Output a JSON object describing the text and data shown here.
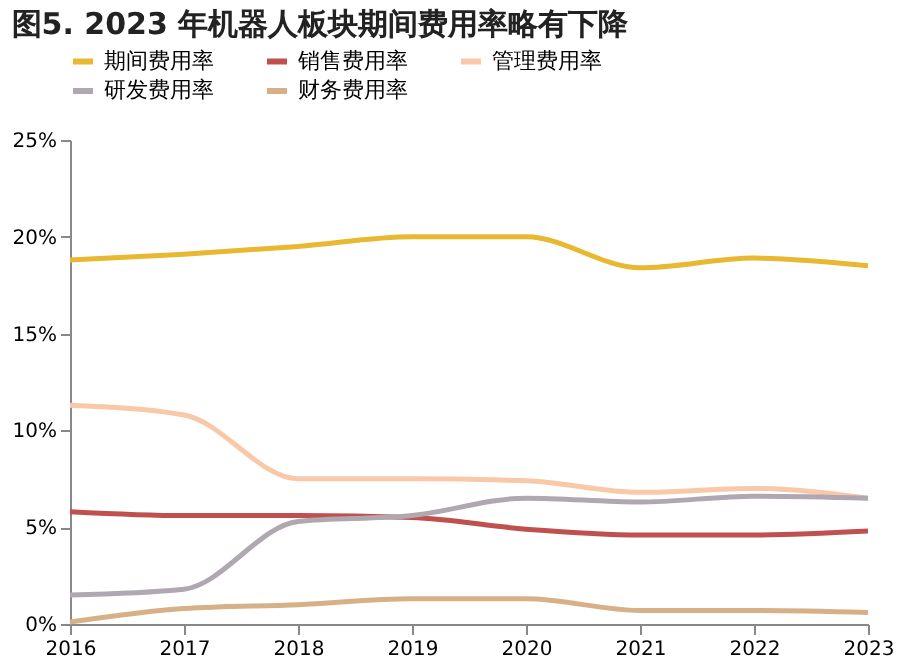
{
  "chart_data": {
    "type": "line",
    "title": "图5. 2023 年机器人板块期间费用率略有下降",
    "categories": [
      "2016",
      "2017",
      "2018",
      "2019",
      "2020",
      "2021",
      "2022",
      "2023"
    ],
    "series": [
      {
        "name": "期间费用率",
        "color": "#e8b830",
        "values": [
          18.8,
          19.1,
          19.5,
          20.0,
          20.0,
          18.4,
          18.9,
          18.5
        ]
      },
      {
        "name": "销售费用率",
        "color": "#c0504d",
        "values": [
          5.8,
          5.6,
          5.6,
          5.5,
          4.9,
          4.6,
          4.6,
          4.8
        ]
      },
      {
        "name": "管理费用率",
        "color": "#f8c8a8",
        "values": [
          11.3,
          10.8,
          7.5,
          7.5,
          7.4,
          6.8,
          7.0,
          6.5
        ]
      },
      {
        "name": "研发费用率",
        "color": "#b0a8b0",
        "values": [
          1.5,
          1.8,
          5.3,
          5.6,
          6.5,
          6.3,
          6.6,
          6.5
        ]
      },
      {
        "name": "财务费用率",
        "color": "#d8b088",
        "values": [
          0.1,
          0.8,
          1.0,
          1.3,
          1.3,
          0.7,
          0.7,
          0.6
        ]
      }
    ],
    "ylim": [
      0,
      25
    ],
    "yticks": [
      {
        "value": 0,
        "label": "0%"
      },
      {
        "value": 5,
        "label": "5%"
      },
      {
        "value": 10,
        "label": "10%"
      },
      {
        "value": 15,
        "label": "15%"
      },
      {
        "value": 20,
        "label": "20%"
      },
      {
        "value": 25,
        "label": "25%"
      }
    ],
    "grid": false,
    "legend": "top",
    "marker": "none",
    "line_style": "solid"
  }
}
